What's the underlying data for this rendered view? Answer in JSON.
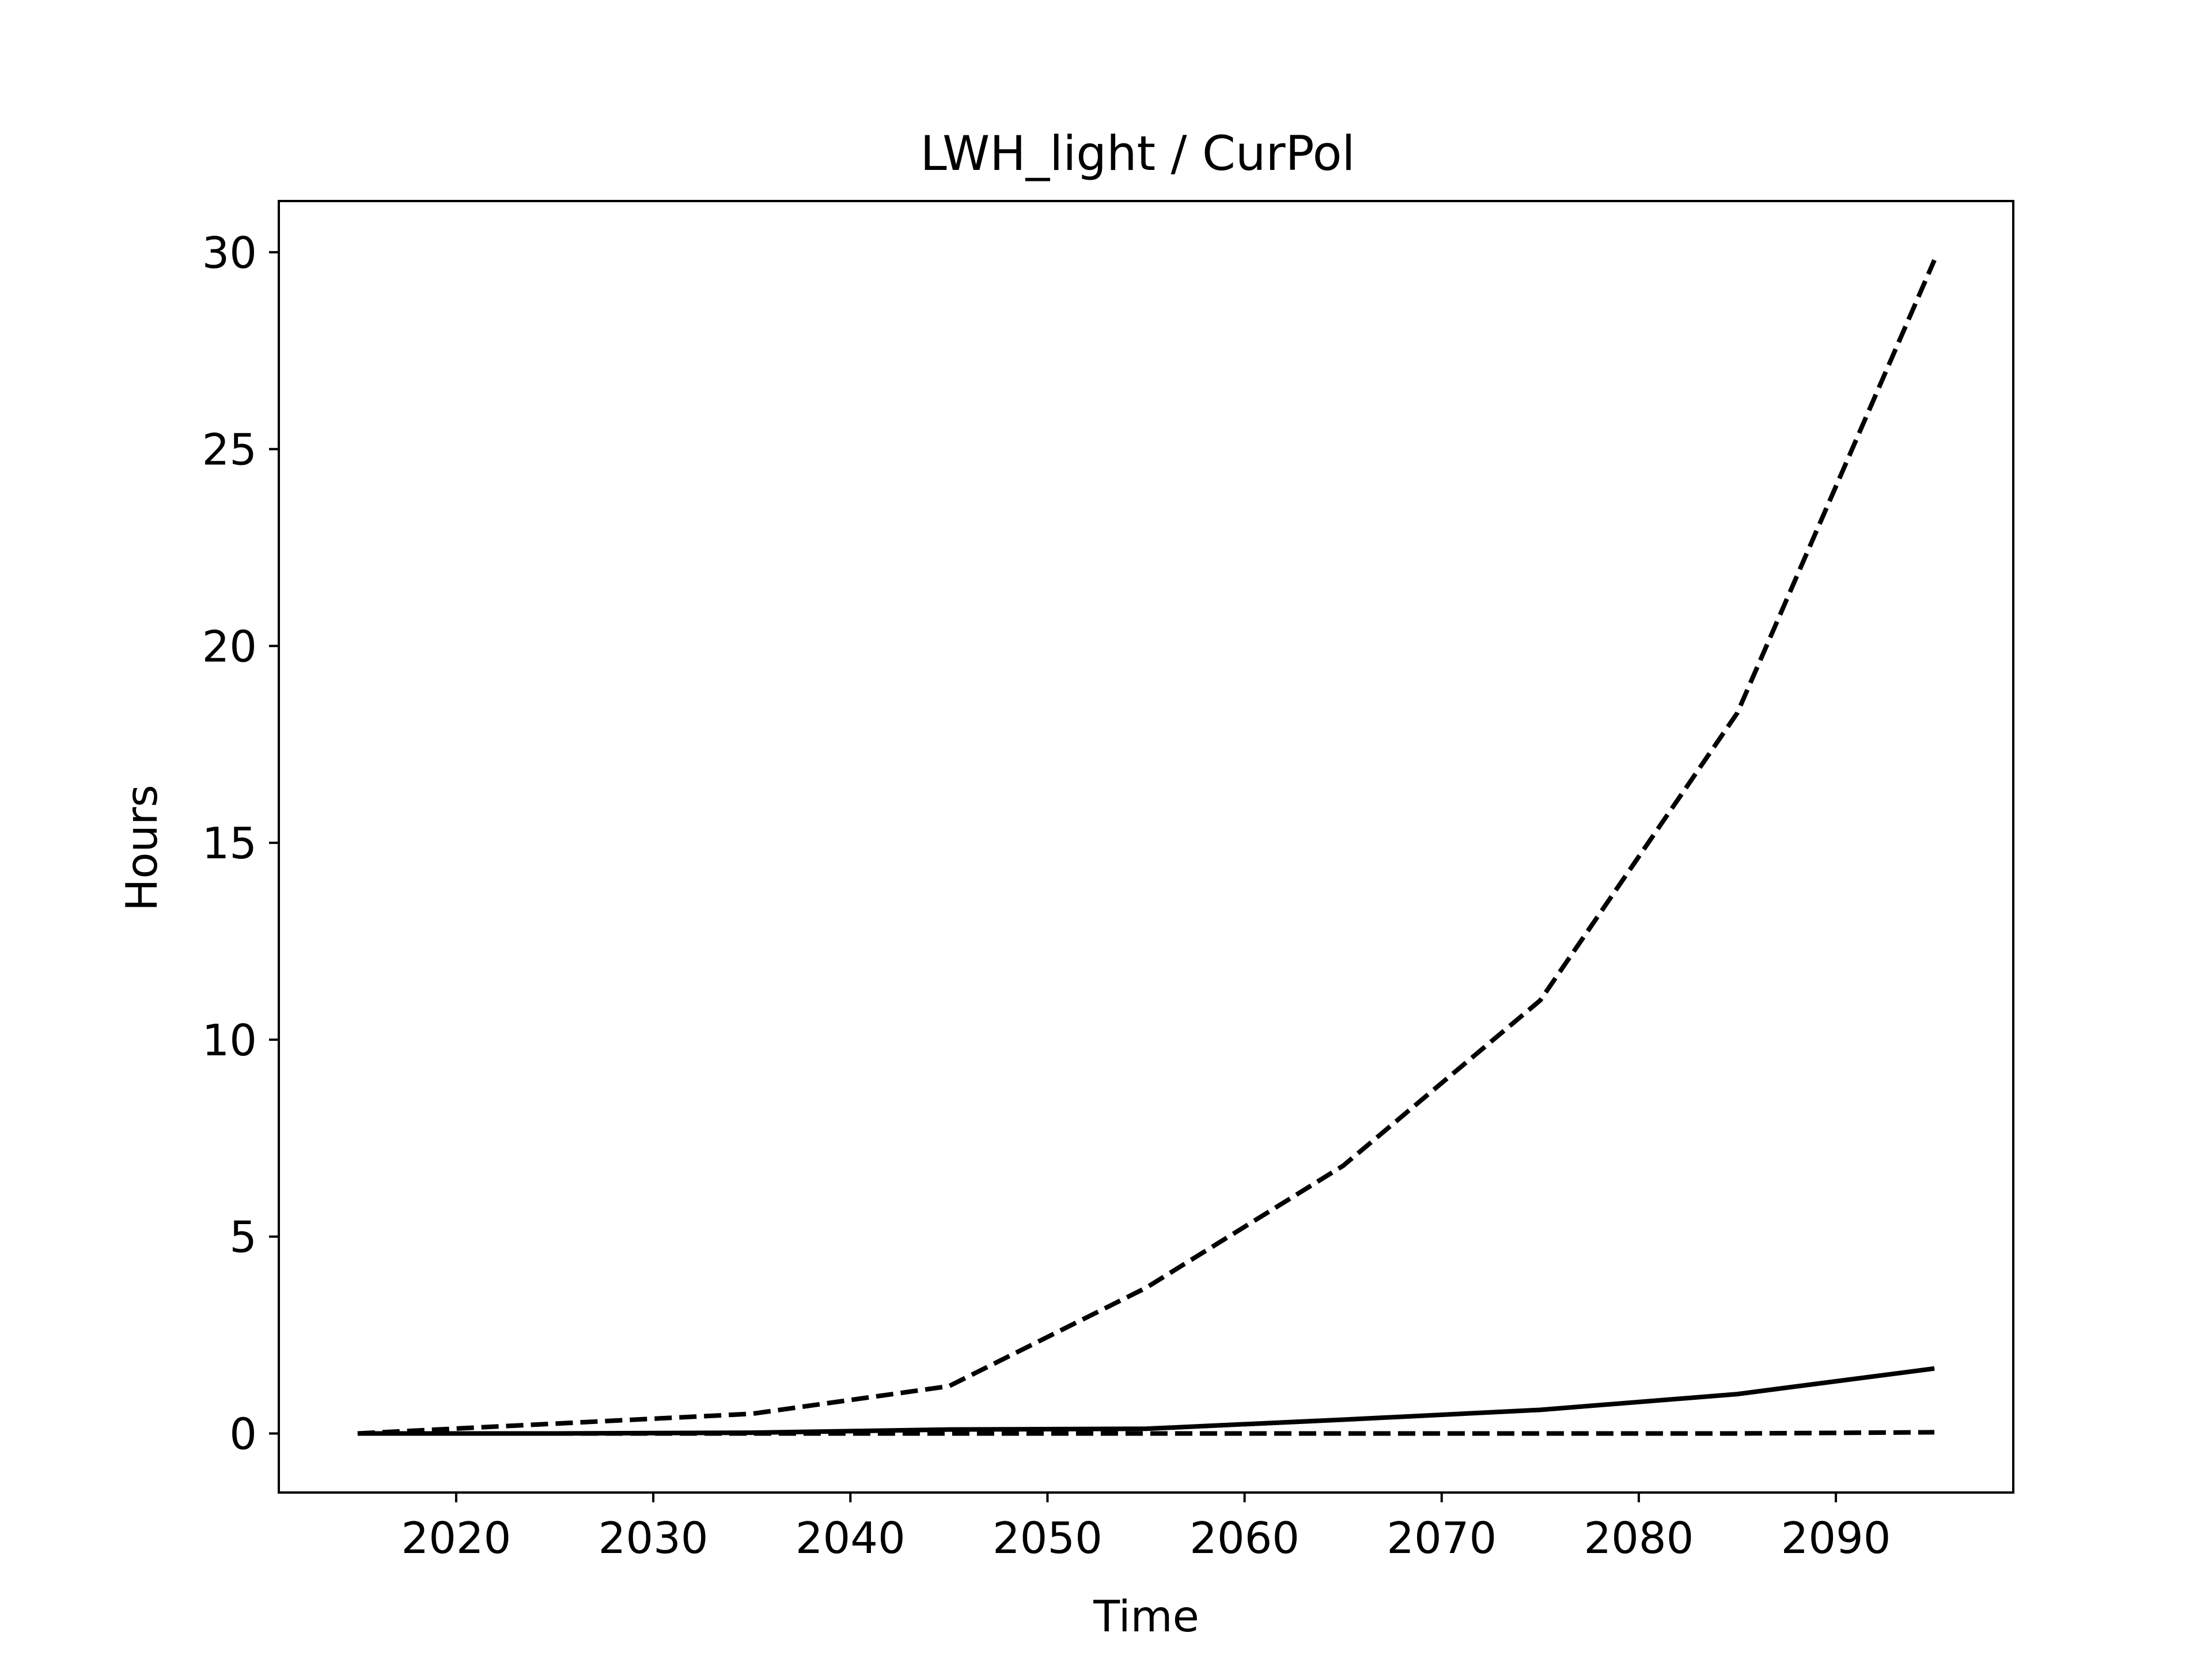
{
  "chart_data": {
    "type": "line",
    "title": "LWH_light / CurPol",
    "xlabel": "Time",
    "ylabel": "Hours",
    "xlim": [
      2011,
      2099
    ],
    "ylim": [
      -1.5,
      31.3
    ],
    "xticks": [
      2020,
      2030,
      2040,
      2050,
      2060,
      2070,
      2080,
      2090
    ],
    "yticks": [
      0,
      5,
      10,
      15,
      20,
      25,
      30
    ],
    "grid": false,
    "legend": false,
    "x": [
      2015,
      2025,
      2035,
      2045,
      2055,
      2065,
      2075,
      2085,
      2095
    ],
    "series": [
      {
        "values": [
          0.0,
          0.25,
          0.5,
          1.2,
          3.7,
          6.8,
          11.0,
          18.3,
          29.8
        ],
        "style": "dashed",
        "color": "#000000"
      },
      {
        "values": [
          0.0,
          0.0,
          0.02,
          0.1,
          0.12,
          0.35,
          0.6,
          1.0,
          1.65
        ],
        "style": "solid",
        "color": "#000000"
      },
      {
        "values": [
          0.0,
          0.0,
          0.0,
          0.0,
          0.0,
          0.0,
          0.0,
          0.0,
          0.03
        ],
        "style": "dashed",
        "color": "#000000"
      }
    ]
  }
}
